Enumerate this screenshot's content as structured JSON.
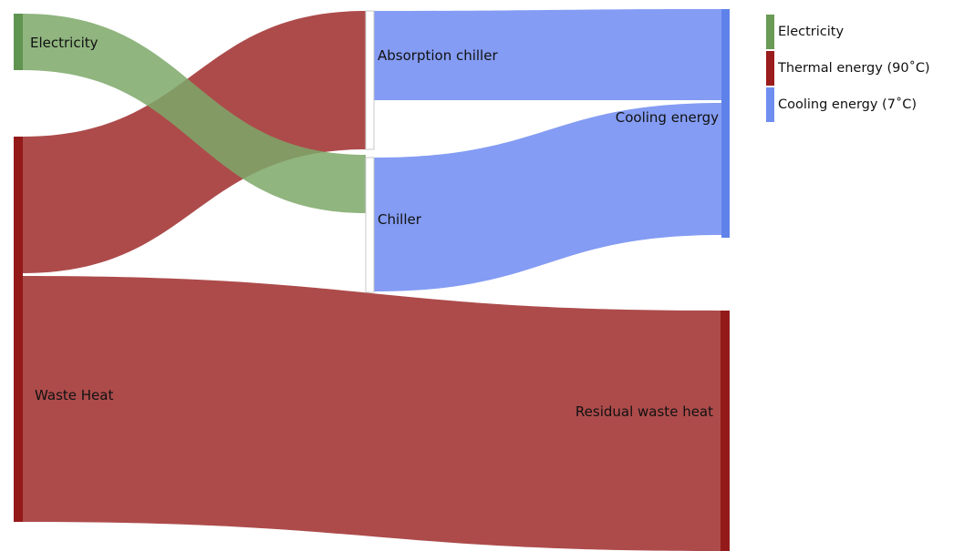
{
  "chart_data": {
    "type": "sankey",
    "title": "",
    "nodes": [
      {
        "id": "electricity",
        "label": "Electricity",
        "category": "Electricity"
      },
      {
        "id": "waste_heat",
        "label": "Waste Heat",
        "category": "Thermal energy (90˚C)"
      },
      {
        "id": "absorption_chiller",
        "label": "Absorption chiller",
        "category": "none"
      },
      {
        "id": "chiller",
        "label": "Chiller",
        "category": "none"
      },
      {
        "id": "cooling_energy",
        "label": "Cooling energy",
        "category": "Cooling energy (7˚C)"
      },
      {
        "id": "residual_waste_heat",
        "label": "Residual waste heat",
        "category": "Thermal energy (90˚C)"
      }
    ],
    "links": [
      {
        "source": "waste_heat",
        "target": "absorption_chiller",
        "value": 150,
        "category": "Thermal energy (90˚C)"
      },
      {
        "source": "electricity",
        "target": "chiller",
        "value": 62,
        "category": "Electricity"
      },
      {
        "source": "absorption_chiller",
        "target": "cooling_energy",
        "value": 98,
        "category": "Cooling energy (7˚C)"
      },
      {
        "source": "chiller",
        "target": "cooling_energy",
        "value": 146,
        "category": "Cooling energy (7˚C)"
      },
      {
        "source": "waste_heat",
        "target": "residual_waste_heat",
        "value": 268,
        "category": "Thermal energy (90˚C)"
      }
    ],
    "legend": {
      "placement": "top-right",
      "entries": [
        {
          "label": "Electricity",
          "color": "#6a9a55"
        },
        {
          "label": "Thermal energy (90˚C)",
          "color": "#9b1c1c"
        },
        {
          "label": "Cooling energy (7˚C)",
          "color": "#6f8ef0"
        }
      ]
    },
    "colors": {
      "electricity_node": "#5f9550",
      "electricity_link": "#7da868",
      "thermal_node": "#941a1a",
      "thermal_link": "#ad4b4b",
      "cooling_node": "#5f82ea",
      "cooling_link": "#849cf3",
      "neutral_node": "#ffffff",
      "neutral_node_stroke": "#c8c8c8"
    }
  }
}
